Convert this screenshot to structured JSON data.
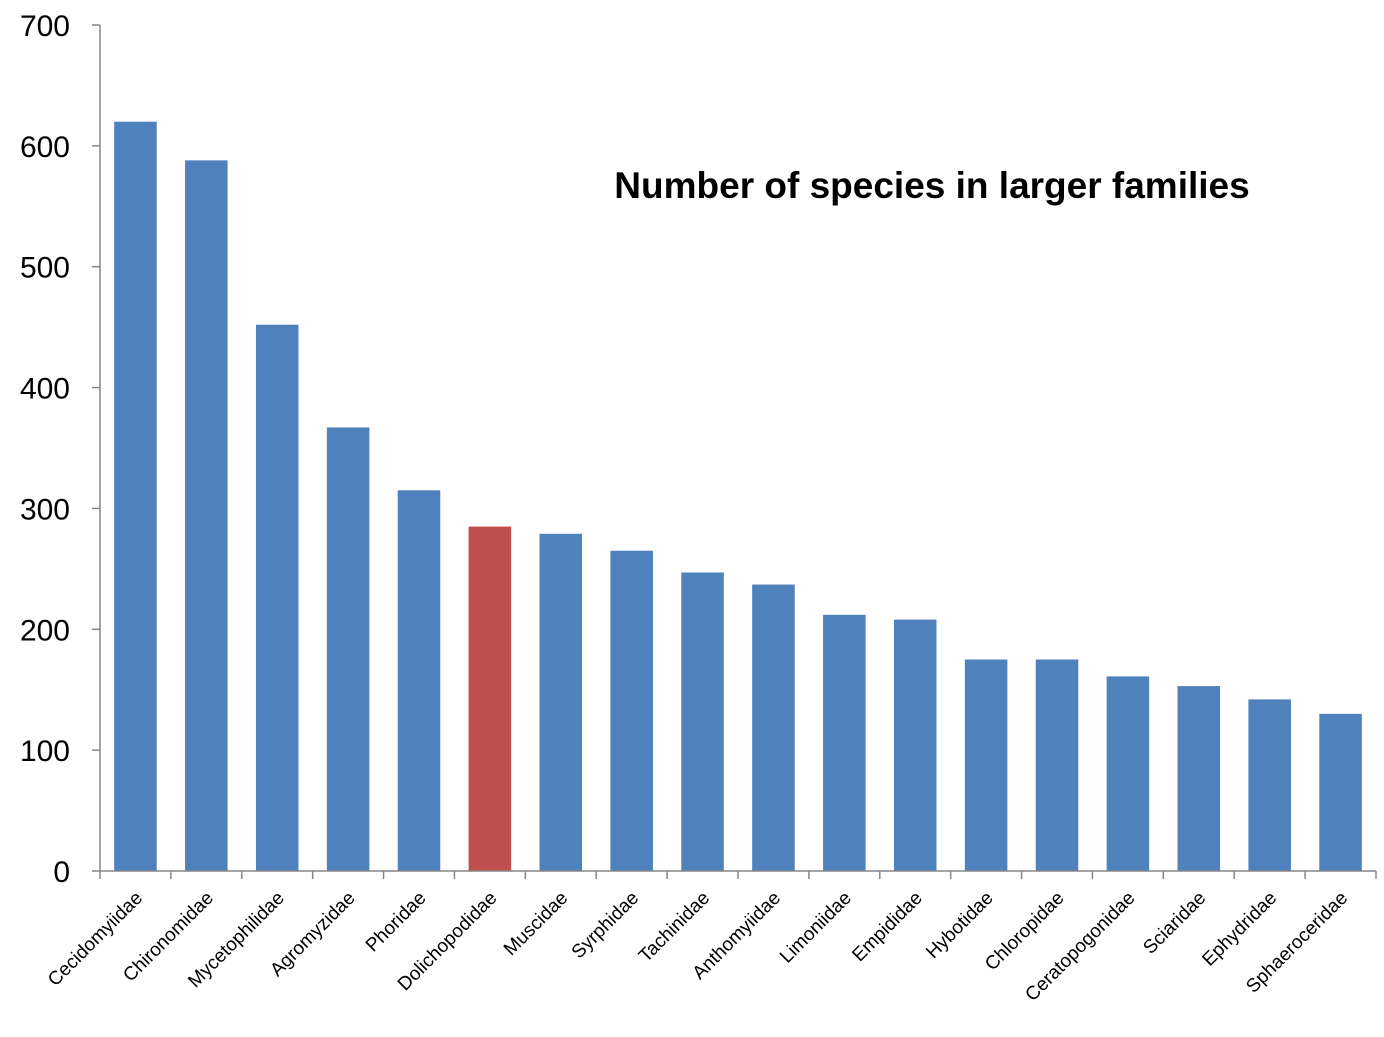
{
  "chart_data": {
    "type": "bar",
    "title": "Number of species in larger families",
    "xlabel": "",
    "ylabel": "",
    "ylim": [
      0,
      700
    ],
    "yticks": [
      0,
      100,
      200,
      300,
      400,
      500,
      600,
      700
    ],
    "grid": false,
    "legend": "none",
    "categories": [
      "Cecidomyiidae",
      "Chironomidae",
      "Mycetophilidae",
      "Agromyzidae",
      "Phoridae",
      "Dolichopodidae",
      "Muscidae",
      "Syrphidae",
      "Tachinidae",
      "Anthomyiidae",
      "Limoniidae",
      "Empididae",
      "Hybotidae",
      "Chloropidae",
      "Ceratopogonidae",
      "Sciaridae",
      "Ephydridae",
      "Sphaeroceridae"
    ],
    "values": [
      620,
      588,
      452,
      367,
      315,
      285,
      279,
      265,
      247,
      237,
      212,
      208,
      175,
      175,
      161,
      153,
      142,
      130
    ],
    "highlight_category": "Dolichopodidae",
    "colors": {
      "bar": "#4F81BD",
      "highlight": "#C0504D",
      "axis": "#868686"
    }
  }
}
